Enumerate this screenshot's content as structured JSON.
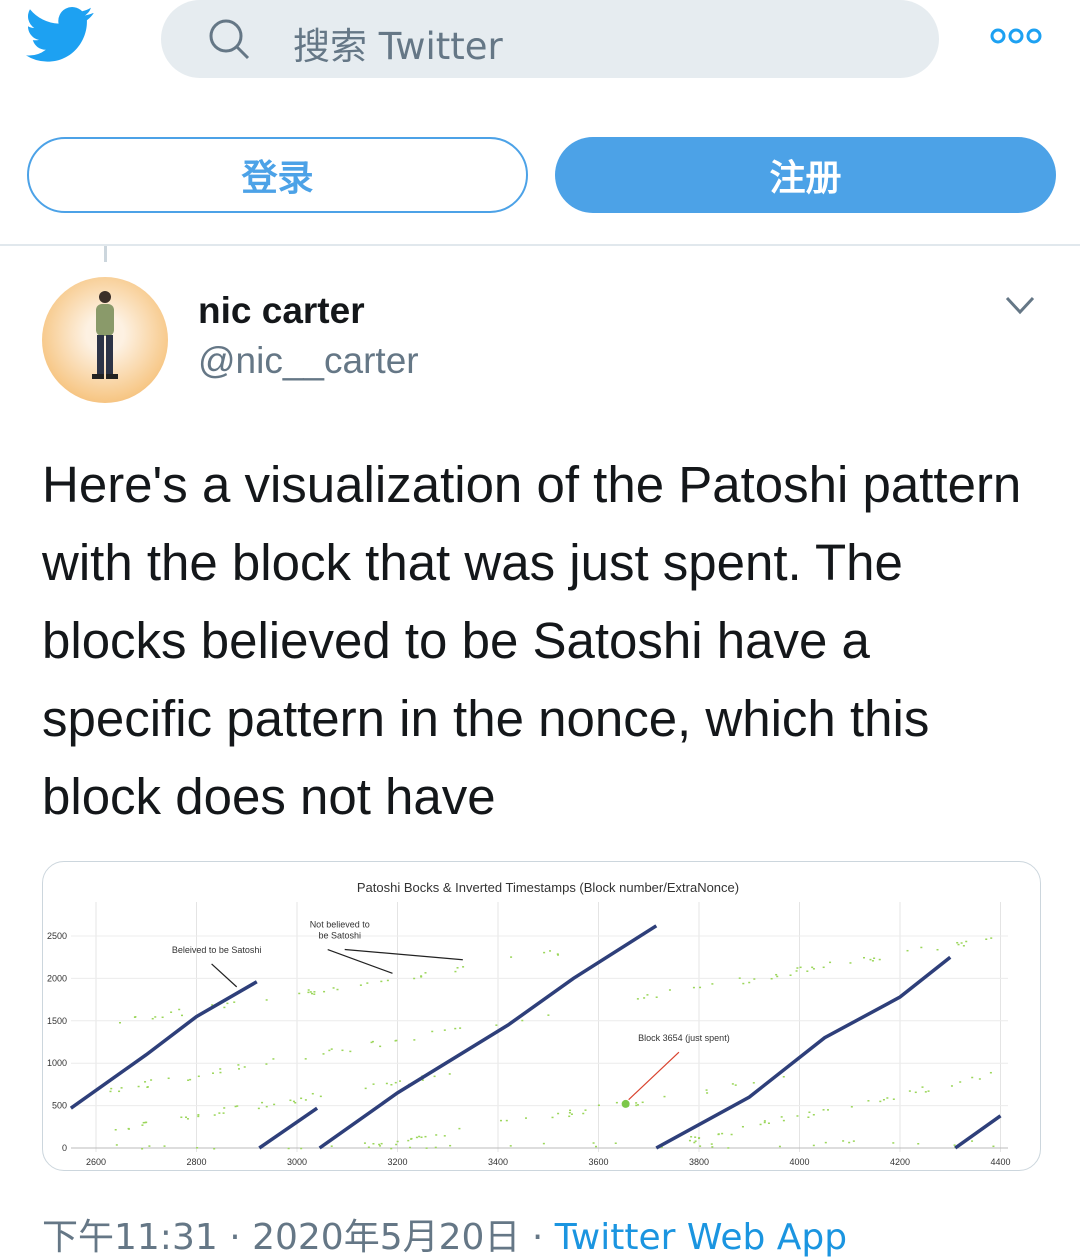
{
  "header": {
    "search_placeholder": "搜索 Twitter",
    "brand_color": "#1da1f2",
    "icons": [
      "twitter-bird-icon",
      "search-icon",
      "more-icon"
    ]
  },
  "auth": {
    "login_label": "登录",
    "signup_label": "注册",
    "accent": "#4ca2e7"
  },
  "tweet": {
    "name": "nic carter",
    "handle": "@nic__carter",
    "text": "Here's a visualization of the Patoshi pattern with the block that was just spent. The blocks believed to be Satoshi have a specific pattern in the nonce, which this block does not have",
    "time": "下午11:31 · 2020年5月20日 · ",
    "source": "Twitter Web App"
  },
  "chart_data": {
    "type": "scatter",
    "title": "Patoshi Bocks & Inverted Timestamps (Block number/ExtraNonce)",
    "xlim": [
      2550,
      4410
    ],
    "ylim": [
      0,
      2700
    ],
    "xticks": [
      2600,
      2800,
      3000,
      3200,
      3400,
      3600,
      3800,
      4000,
      4200,
      4400
    ],
    "yticks": [
      0,
      500,
      1000,
      1500,
      2000,
      2500
    ],
    "grid": true,
    "colors": {
      "patoshi": "#2e3f7a",
      "other": "#9bd65a",
      "arrow": "#222222",
      "highlight_arrow": "#d9432f"
    },
    "patoshi_segments": [
      [
        [
          2550,
          470
        ],
        [
          2700,
          1100
        ],
        [
          2800,
          1550
        ],
        [
          2920,
          1960
        ]
      ],
      [
        [
          2925,
          0
        ],
        [
          3040,
          470
        ]
      ],
      [
        [
          3045,
          0
        ],
        [
          3200,
          650
        ],
        [
          3420,
          1450
        ],
        [
          3550,
          2000
        ],
        [
          3715,
          2620
        ]
      ],
      [
        [
          3715,
          0
        ],
        [
          3900,
          600
        ],
        [
          4050,
          1300
        ],
        [
          4200,
          1780
        ],
        [
          4300,
          2250
        ]
      ],
      [
        [
          4310,
          0
        ],
        [
          4400,
          380
        ]
      ]
    ],
    "other_bands": [
      [
        [
          2600,
          1450
        ],
        [
          3560,
          2350
        ]
      ],
      [
        [
          2620,
          680
        ],
        [
          3600,
          1700
        ]
      ],
      [
        [
          3650,
          1750
        ],
        [
          4400,
          2500
        ]
      ],
      [
        [
          2600,
          200
        ],
        [
          3330,
          900
        ]
      ],
      [
        [
          3150,
          60
        ],
        [
          4000,
          850
        ]
      ],
      [
        [
          3780,
          100
        ],
        [
          4400,
          900
        ]
      ],
      [
        [
          2560,
          20
        ],
        [
          4400,
          60
        ]
      ]
    ],
    "highlight_point": [
      3654,
      520
    ],
    "annotations": [
      {
        "text": "Beleived to be Satoshi",
        "at": [
          2840,
          2300
        ],
        "arrow_to": [
          [
            2880,
            1900
          ]
        ]
      },
      {
        "text": "Not believed to be Satoshi",
        "at": [
          3085,
          2600
        ],
        "arrow_to": [
          [
            3190,
            2060
          ],
          [
            3330,
            2220
          ]
        ]
      },
      {
        "text": "Block 3654 (just spent)",
        "at": [
          3770,
          1260
        ],
        "arrow_to": [
          [
            3660,
            570
          ]
        ]
      }
    ]
  }
}
